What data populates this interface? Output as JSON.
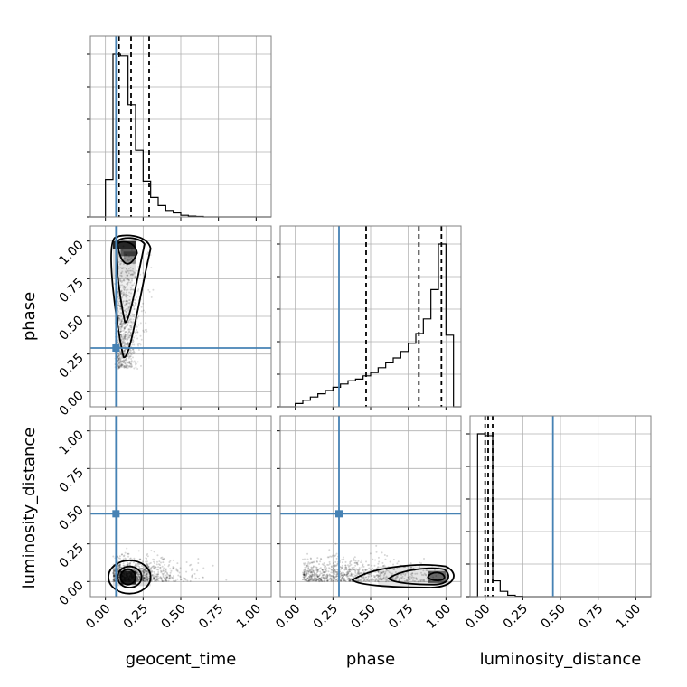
{
  "chart_data": {
    "type": "corner",
    "parameters": [
      "geocent_time",
      "phase",
      "luminosity_distance"
    ],
    "injected": {
      "geocent_time": 0.07,
      "phase": 0.29,
      "luminosity_distance": 0.45
    },
    "axis_range": [
      -0.1,
      1.1
    ],
    "ticks": [
      "0.00",
      "0.25",
      "0.50",
      "0.75",
      "1.00"
    ],
    "grid": true,
    "colors": {
      "truth": "#4682b4",
      "hist": "#000000",
      "grid": "#b0b0b0",
      "frame": "#808080"
    },
    "histograms": [
      {
        "parameter": "geocent_time",
        "bin_edges": [
          -0.1,
          -0.05,
          0.0,
          0.05,
          0.1,
          0.15,
          0.2,
          0.25,
          0.3,
          0.35,
          0.4,
          0.45,
          0.5,
          0.55,
          0.6,
          0.65,
          0.7,
          0.75,
          0.8,
          0.85,
          0.9,
          0.95,
          1.0,
          1.05,
          1.1
        ],
        "counts": [
          0,
          0,
          0.23,
          1.0,
          0.99,
          0.69,
          0.41,
          0.22,
          0.12,
          0.07,
          0.04,
          0.025,
          0.01,
          0.005,
          0.003,
          0,
          0,
          0,
          0,
          0,
          0,
          0,
          0,
          0
        ],
        "quantiles": [
          0.09,
          0.17,
          0.29
        ]
      },
      {
        "parameter": "phase",
        "bin_edges": [
          -0.1,
          -0.05,
          0.0,
          0.05,
          0.1,
          0.15,
          0.2,
          0.25,
          0.3,
          0.35,
          0.4,
          0.45,
          0.5,
          0.55,
          0.6,
          0.65,
          0.7,
          0.75,
          0.8,
          0.85,
          0.9,
          0.95,
          1.0,
          1.05,
          1.1
        ],
        "counts": [
          0,
          0,
          0.02,
          0.04,
          0.06,
          0.08,
          0.1,
          0.12,
          0.14,
          0.16,
          0.17,
          0.19,
          0.21,
          0.24,
          0.27,
          0.3,
          0.34,
          0.39,
          0.45,
          0.54,
          0.72,
          1.0,
          0.44,
          0
        ],
        "quantiles": [
          0.47,
          0.82,
          0.97
        ]
      },
      {
        "parameter": "luminosity_distance",
        "bin_edges": [
          -0.1,
          -0.05,
          0.0,
          0.05,
          0.1,
          0.15,
          0.2,
          0.25,
          0.3,
          0.35,
          0.4,
          0.45,
          0.5,
          0.55,
          0.6,
          0.65,
          0.7,
          0.75,
          0.8,
          0.85,
          0.9,
          0.95,
          1.0,
          1.05,
          1.1
        ],
        "counts": [
          0,
          0.93,
          0.92,
          0.09,
          0.03,
          0.008,
          0.002,
          0,
          0,
          0,
          0,
          0,
          0,
          0,
          0,
          0,
          0,
          0,
          0,
          0,
          0,
          0,
          0,
          0
        ],
        "quantiles": [
          0.0,
          0.02,
          0.05
        ]
      }
    ],
    "joint": [
      {
        "x": "geocent_time",
        "y": "phase",
        "center": [
          0.13,
          0.7
        ],
        "spread": [
          0.08,
          0.28
        ]
      },
      {
        "x": "geocent_time",
        "y": "luminosity_distance",
        "center": [
          0.15,
          0.03
        ],
        "spread": [
          0.12,
          0.06
        ]
      },
      {
        "x": "phase",
        "y": "luminosity_distance",
        "center": [
          0.85,
          0.03
        ],
        "spread": [
          0.2,
          0.06
        ]
      }
    ]
  }
}
